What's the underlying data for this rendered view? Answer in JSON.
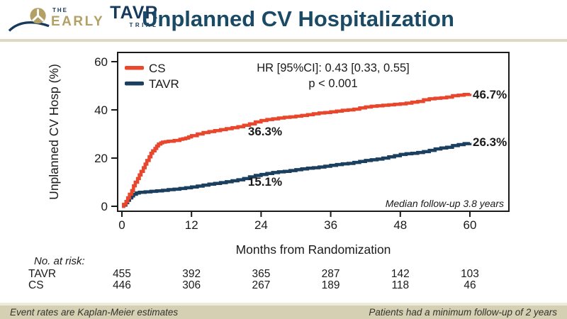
{
  "colors": {
    "navy": "#1b4a66",
    "logo_navy": "#17395c",
    "gold": "#b2a065",
    "red": "#e9462e",
    "curve_navy": "#1b3f5e",
    "sep_tan": "#ddd9c2",
    "footer_tan": "#d5d0b3",
    "footer_top": "#eceada"
  },
  "header": {
    "logo": {
      "the": "THE",
      "early": "EARLY",
      "tavr": "TAVR",
      "trial": "TRIAL"
    },
    "title": "Unplanned CV Hospitalization"
  },
  "chart_data": {
    "type": "line",
    "subtype": "kaplan-meier-step",
    "title": "Unplanned CV Hospitalization",
    "xlabel": "Months from Randomization",
    "ylabel": "Unplanned CV Hosp (%)",
    "xlim": [
      0,
      60
    ],
    "ylim": [
      0,
      60
    ],
    "x_ticks": [
      0,
      12,
      24,
      36,
      48,
      60
    ],
    "y_ticks": [
      0,
      20,
      40,
      60
    ],
    "grid": false,
    "legend_position": "top-left",
    "hr_text": "HR [95%CI]: 0.43 [0.33, 0.55]",
    "p_text": "p < 0.001",
    "median_note": "Median follow-up 3.8 years",
    "annotations": {
      "cs_mid": "36.3%",
      "tavr_mid": "15.1%",
      "cs_end": "46.7%",
      "tavr_end": "26.3%"
    },
    "series": [
      {
        "name": "CS",
        "color": "#e9462e",
        "final_value": 46.7,
        "mid_value": 36.3,
        "points": [
          [
            0,
            0
          ],
          [
            0.3,
            0.8
          ],
          [
            0.7,
            2
          ],
          [
            1,
            3.5
          ],
          [
            1.3,
            5
          ],
          [
            1.7,
            6.5
          ],
          [
            2,
            8.5
          ],
          [
            2.3,
            10
          ],
          [
            2.7,
            11.5
          ],
          [
            3,
            13
          ],
          [
            3.3,
            14.5
          ],
          [
            3.7,
            16
          ],
          [
            4,
            17.5
          ],
          [
            4.3,
            19
          ],
          [
            4.7,
            20.5
          ],
          [
            5,
            22
          ],
          [
            5.3,
            23
          ],
          [
            5.7,
            24
          ],
          [
            6,
            25
          ],
          [
            6.3,
            25.8
          ],
          [
            6.7,
            26.3
          ],
          [
            7,
            26.6
          ],
          [
            7.5,
            26.8
          ],
          [
            8,
            27
          ],
          [
            9,
            27.3
          ],
          [
            10,
            27.8
          ],
          [
            10.5,
            28
          ],
          [
            11,
            28.3
          ],
          [
            11.5,
            28.8
          ],
          [
            12,
            29.3
          ],
          [
            13,
            30
          ],
          [
            14,
            30.6
          ],
          [
            15,
            31
          ],
          [
            16,
            31.4
          ],
          [
            17,
            31.8
          ],
          [
            18,
            32.2
          ],
          [
            19,
            32.6
          ],
          [
            20,
            33
          ],
          [
            21,
            33.6
          ],
          [
            22,
            34.2
          ],
          [
            23,
            35
          ],
          [
            24,
            35.6
          ],
          [
            25,
            36
          ],
          [
            26,
            36.3
          ],
          [
            27,
            36.6
          ],
          [
            28,
            36.9
          ],
          [
            29,
            37.1
          ],
          [
            30,
            37.4
          ],
          [
            31,
            37.7
          ],
          [
            32,
            38
          ],
          [
            33,
            38.4
          ],
          [
            34,
            38.7
          ],
          [
            35,
            38.9
          ],
          [
            36,
            39.2
          ],
          [
            37,
            39.5
          ],
          [
            38,
            39.8
          ],
          [
            39,
            40
          ],
          [
            40,
            40.3
          ],
          [
            41,
            40.8
          ],
          [
            42,
            41.2
          ],
          [
            43,
            41.5
          ],
          [
            44,
            41.7
          ],
          [
            45,
            41.9
          ],
          [
            46,
            42.1
          ],
          [
            47,
            42.3
          ],
          [
            48,
            42.5
          ],
          [
            49,
            42.8
          ],
          [
            50,
            43.2
          ],
          [
            51,
            43.5
          ],
          [
            52,
            44.2
          ],
          [
            53,
            44.6
          ],
          [
            54,
            44.8
          ],
          [
            55,
            45
          ],
          [
            56,
            45.3
          ],
          [
            57,
            45.9
          ],
          [
            58,
            46.1
          ],
          [
            59,
            46.4
          ],
          [
            60,
            46.7
          ]
        ]
      },
      {
        "name": "TAVR",
        "color": "#1b3f5e",
        "final_value": 26.3,
        "mid_value": 15.1,
        "points": [
          [
            0,
            0
          ],
          [
            0.3,
            0.5
          ],
          [
            0.7,
            1.5
          ],
          [
            1,
            2.5
          ],
          [
            1.3,
            3.5
          ],
          [
            1.7,
            4.3
          ],
          [
            2,
            5
          ],
          [
            2.5,
            5.5
          ],
          [
            3,
            5.8
          ],
          [
            4,
            6
          ],
          [
            5,
            6.2
          ],
          [
            6,
            6.4
          ],
          [
            7,
            6.6
          ],
          [
            8,
            6.9
          ],
          [
            9,
            7.1
          ],
          [
            10,
            7.4
          ],
          [
            11,
            7.7
          ],
          [
            12,
            8
          ],
          [
            13,
            8.4
          ],
          [
            14,
            8.8
          ],
          [
            15,
            9.2
          ],
          [
            16,
            9.5
          ],
          [
            17,
            9.8
          ],
          [
            18,
            10.2
          ],
          [
            19,
            10.6
          ],
          [
            20,
            11
          ],
          [
            21,
            11.5
          ],
          [
            22,
            12.2
          ],
          [
            23,
            12.8
          ],
          [
            24,
            13.2
          ],
          [
            25,
            13.6
          ],
          [
            26,
            14
          ],
          [
            27,
            14.3
          ],
          [
            28,
            14.5
          ],
          [
            29,
            14.8
          ],
          [
            30,
            15.2
          ],
          [
            31,
            15.5
          ],
          [
            32,
            15.8
          ],
          [
            33,
            16
          ],
          [
            34,
            16.3
          ],
          [
            35,
            16.6
          ],
          [
            36,
            17
          ],
          [
            37,
            17.3
          ],
          [
            38,
            17.6
          ],
          [
            39,
            17.8
          ],
          [
            40,
            18.2
          ],
          [
            41,
            18.6
          ],
          [
            42,
            19
          ],
          [
            43,
            19.3
          ],
          [
            44,
            19.6
          ],
          [
            45,
            20
          ],
          [
            46,
            20.5
          ],
          [
            47,
            21
          ],
          [
            48,
            21.5
          ],
          [
            49,
            21.8
          ],
          [
            50,
            22
          ],
          [
            51,
            22.3
          ],
          [
            52,
            22.7
          ],
          [
            53,
            23.2
          ],
          [
            54,
            23.8
          ],
          [
            55,
            24.2
          ],
          [
            56,
            24.5
          ],
          [
            57,
            25.2
          ],
          [
            58,
            25.6
          ],
          [
            59,
            26
          ],
          [
            60,
            26.3
          ]
        ]
      }
    ]
  },
  "risk_table": {
    "label": "No. at risk:",
    "rows": [
      {
        "name": "TAVR",
        "counts": [
          455,
          392,
          365,
          287,
          142,
          103
        ]
      },
      {
        "name": "CS",
        "counts": [
          446,
          306,
          267,
          189,
          118,
          46
        ]
      }
    ]
  },
  "footer": {
    "left": "Event rates are Kaplan-Meier estimates",
    "right": "Patients had a minimum follow-up of 2 years"
  }
}
